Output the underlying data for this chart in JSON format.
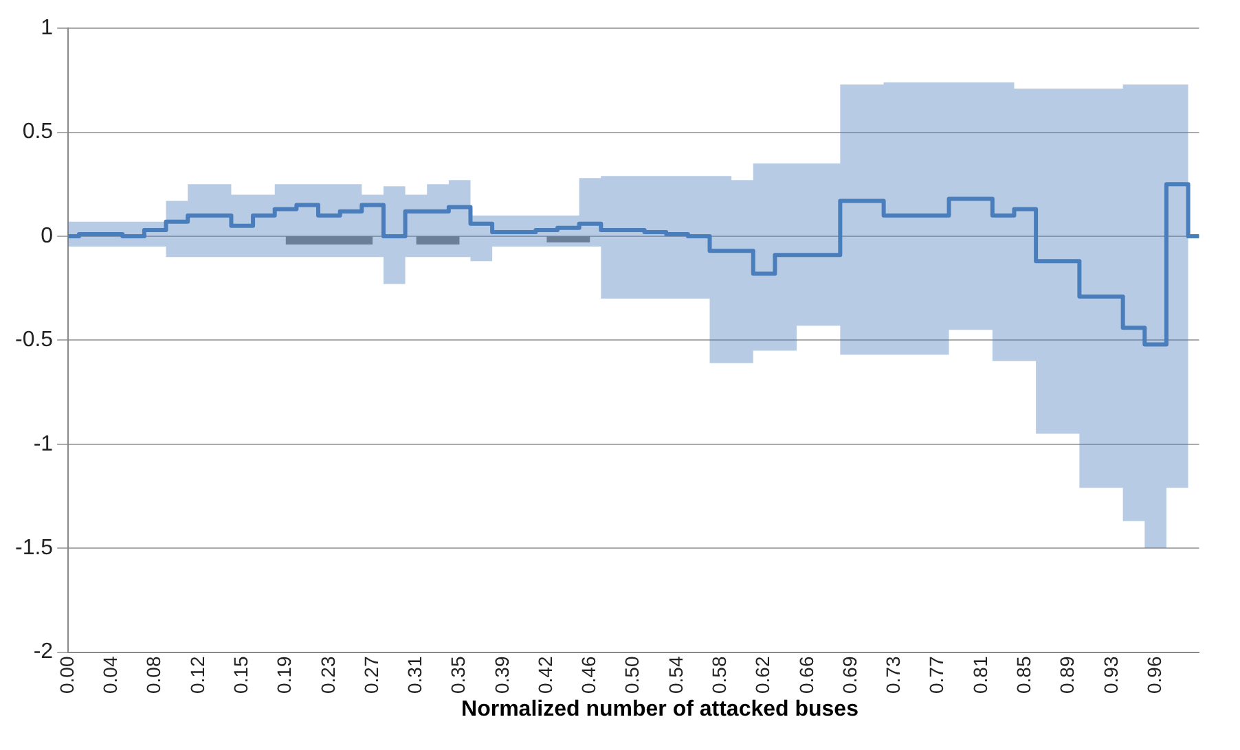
{
  "chart_data": {
    "type": "step",
    "xlabel": "Normalized number of attacked buses",
    "categories": [
      "0.00",
      null,
      "0.04",
      null,
      "0.08",
      null,
      "0.12",
      null,
      "0.15",
      null,
      "0.19",
      null,
      "0.23",
      null,
      "0.27",
      null,
      "0.31",
      null,
      "0.35",
      null,
      "0.39",
      null,
      "0.42",
      null,
      "0.46",
      null,
      "0.50",
      null,
      "0.54",
      null,
      "0.58",
      null,
      "0.62",
      null,
      "0.66",
      null,
      "0.69",
      null,
      "0.73",
      null,
      "0.77",
      null,
      "0.81",
      null,
      "0.85",
      null,
      "0.89",
      null,
      "0.93",
      null,
      "0.96",
      null,
      null
    ],
    "series": [
      {
        "color": "#4a7ebb",
        "values": [
          0,
          0.01,
          0.01,
          0,
          0.03,
          0.07,
          0.1,
          0.1,
          0.05,
          0.1,
          0.13,
          0.15,
          0.1,
          0.12,
          0.15,
          0,
          0.12,
          0.12,
          0.14,
          0.06,
          0.02,
          0.02,
          0.03,
          0.04,
          0.06,
          0.03,
          0.03,
          0.02,
          0.01,
          0,
          -0.07,
          -0.07,
          -0.18,
          -0.09,
          -0.09,
          -0.09,
          0.17,
          0.17,
          0.1,
          0.1,
          0.1,
          0.18,
          0.18,
          0.1,
          0.13,
          -0.12,
          -0.12,
          -0.29,
          -0.29,
          -0.44,
          -0.52,
          0.25,
          0
        ],
        "lower": [
          -0.05,
          -0.05,
          -0.05,
          -0.05,
          -0.05,
          -0.1,
          -0.1,
          -0.1,
          -0.1,
          -0.1,
          -0.1,
          -0.1,
          -0.1,
          -0.1,
          -0.1,
          -0.23,
          -0.1,
          -0.1,
          -0.1,
          -0.12,
          -0.05,
          -0.05,
          -0.05,
          -0.05,
          -0.05,
          -0.3,
          -0.3,
          -0.3,
          -0.3,
          -0.3,
          -0.61,
          -0.61,
          -0.55,
          -0.55,
          -0.43,
          -0.43,
          -0.57,
          -0.57,
          -0.57,
          -0.57,
          -0.57,
          -0.45,
          -0.45,
          -0.6,
          -0.6,
          -0.95,
          -0.95,
          -1.21,
          -1.21,
          -1.37,
          -1.5,
          -1.21,
          0
        ],
        "upper": [
          0.07,
          0.07,
          0.07,
          0.07,
          0.07,
          0.17,
          0.25,
          0.25,
          0.2,
          0.2,
          0.25,
          0.25,
          0.25,
          0.25,
          0.2,
          0.24,
          0.2,
          0.25,
          0.27,
          0.1,
          0.1,
          0.1,
          0.1,
          0.1,
          0.28,
          0.29,
          0.29,
          0.29,
          0.29,
          0.29,
          0.29,
          0.27,
          0.35,
          0.35,
          0.35,
          0.35,
          0.73,
          0.73,
          0.74,
          0.74,
          0.74,
          0.74,
          0.74,
          0.74,
          0.71,
          0.71,
          0.71,
          0.71,
          0.71,
          0.73,
          0.73,
          0.73,
          0
        ]
      },
      {
        "type": "area",
        "color": "#808080",
        "values": [
          null,
          null,
          null,
          null,
          null,
          null,
          null,
          null,
          null,
          null,
          -0.04,
          -0.04,
          -0.04,
          -0.04,
          -0.04,
          null,
          -0.04,
          -0.04,
          -0.04,
          null,
          null,
          null,
          -0.03,
          -0.03,
          -0.03,
          null,
          null,
          null,
          null,
          null,
          null,
          null,
          null,
          null,
          null,
          null,
          null,
          null,
          null,
          null,
          null,
          null,
          null,
          null,
          null,
          null,
          null,
          null,
          null,
          null,
          null,
          null,
          null
        ]
      }
    ],
    "ylim": [
      -2,
      1
    ],
    "yticks": [
      -2,
      -1.5,
      -1,
      -0.5,
      0,
      0.5,
      1
    ],
    "grid": "y",
    "legend": false
  }
}
